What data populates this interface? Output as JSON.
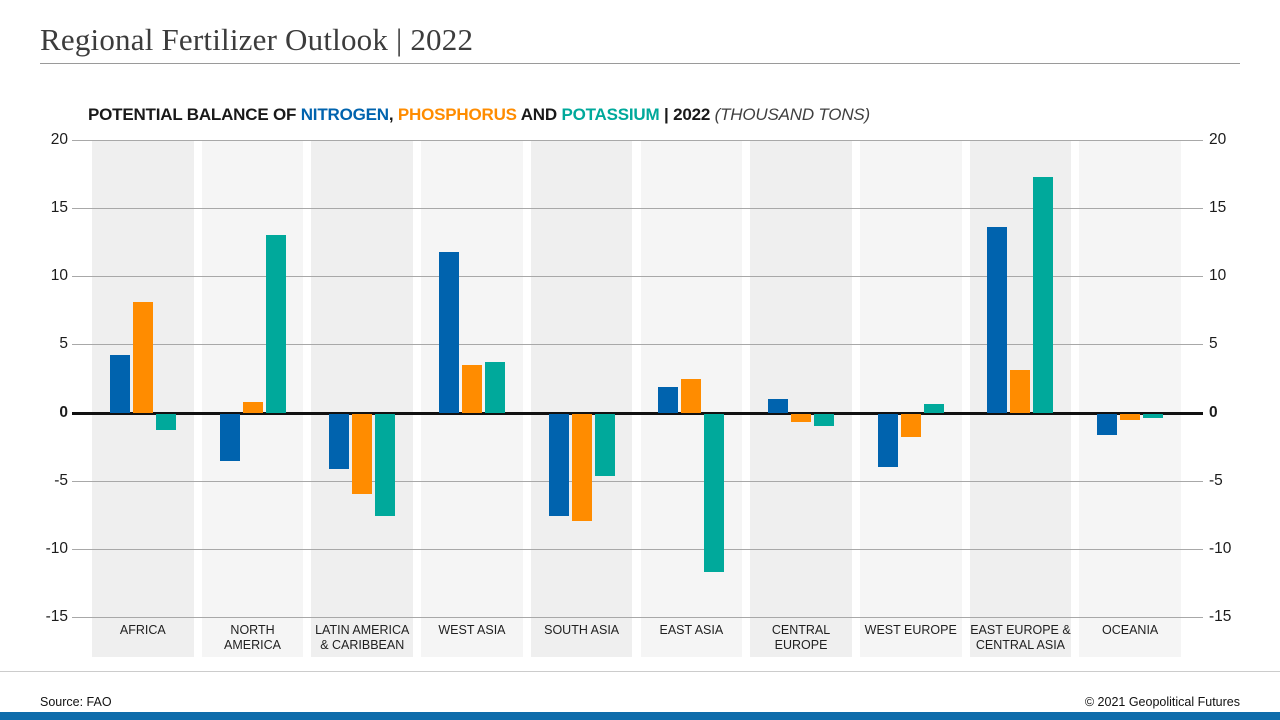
{
  "header": {
    "title": "Regional Fertilizer Outlook | 2022"
  },
  "subtitle": {
    "prefix": "POTENTIAL BALANCE OF ",
    "nitrogen": "NITROGEN",
    "separator": ", ",
    "phosphorus": "PHOSPHORUS",
    "conjunction": " AND ",
    "potassium": "POTASSIUM",
    "year_suffix": " | 2022 ",
    "unit_note": "(THOUSAND TONS)"
  },
  "footer": {
    "source": "Source: FAO",
    "copyright": "© 2021 Geopolitical Futures"
  },
  "colors": {
    "nitrogen": "#0063ae",
    "phosphorus": "#ff8c00",
    "potassium": "#00a99b",
    "zero_line": "#111111",
    "gridline": "#a8a8a8",
    "band_dark": "#efefef",
    "band_light": "#f5f5f5",
    "brand_bar": "#0e6cab"
  },
  "chart_data": {
    "type": "bar",
    "title": "POTENTIAL BALANCE OF NITROGEN, PHOSPHORUS AND POTASSIUM | 2022 (THOUSAND TONS)",
    "unit": "thousand tons",
    "categories": [
      "AFRICA",
      "NORTH\nAMERICA",
      "LATIN AMERICA\n& CARIBBEAN",
      "WEST ASIA",
      "SOUTH ASIA",
      "EAST ASIA",
      "CENTRAL\nEUROPE",
      "WEST EUROPE",
      "EAST EUROPE &\nCENTRAL ASIA",
      "OCEANIA"
    ],
    "series": [
      {
        "name": "NITROGEN",
        "color": "#0063ae",
        "values": [
          4.2,
          -3.5,
          -4.1,
          11.8,
          -7.5,
          1.9,
          1.0,
          -3.9,
          13.6,
          -1.6
        ]
      },
      {
        "name": "PHOSPHORUS",
        "color": "#ff8c00",
        "values": [
          8.1,
          0.8,
          -5.9,
          3.5,
          -7.9,
          2.5,
          -0.6,
          -1.7,
          3.1,
          -0.5
        ]
      },
      {
        "name": "POTASSIUM",
        "color": "#00a99b",
        "values": [
          -1.2,
          13.0,
          -7.5,
          3.7,
          -4.6,
          -11.6,
          -0.9,
          0.6,
          17.3,
          -0.3
        ]
      }
    ],
    "ylim": [
      -15,
      20
    ],
    "yticks": [
      20,
      15,
      10,
      5,
      0,
      -5,
      -10,
      -15
    ],
    "grid": true,
    "y_axis_sides": "both",
    "legend_position": "inline-in-title"
  }
}
